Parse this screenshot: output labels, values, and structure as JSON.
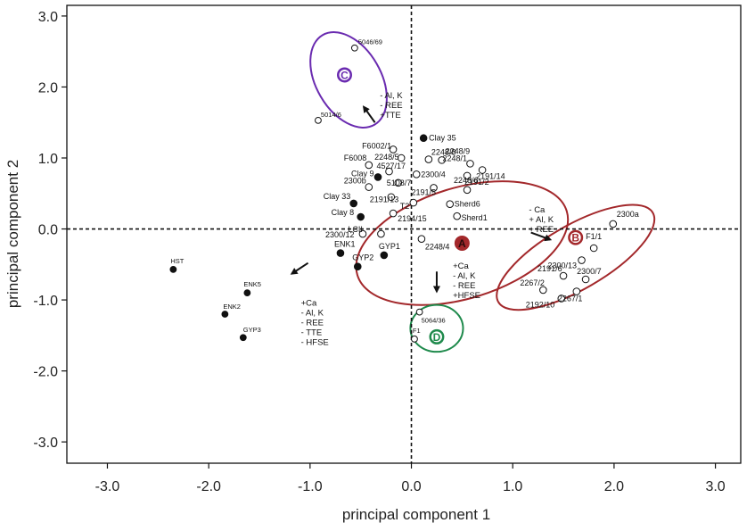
{
  "chart_data": {
    "type": "scatter",
    "title": "",
    "xlabel": "principal component 1",
    "ylabel": "principal component 2",
    "xlim": [
      -3.4,
      3.25
    ],
    "ylim": [
      -3.3,
      3.15
    ],
    "xticks": [
      "-3.0",
      "-2.0",
      "-1.0",
      "0.0",
      "1.0",
      "2.0",
      "3.0"
    ],
    "xtick_values": [
      -3,
      -2,
      -1,
      0,
      1,
      2,
      3
    ],
    "yticks": [
      "3.0",
      "2.0",
      "1.0",
      "0.0",
      "-1.0",
      "-2.0",
      "-3.0"
    ],
    "ytick_values": [
      3,
      2,
      1,
      0,
      -1,
      -2,
      -3
    ],
    "reference_lines": {
      "x": 0,
      "y": 0,
      "style": "dashed"
    },
    "grid": false,
    "points": [
      {
        "label": "5046/69",
        "x": -0.56,
        "y": 2.55,
        "filled": false,
        "small": true
      },
      {
        "label": "5014/6",
        "x": -0.92,
        "y": 1.53,
        "filled": false,
        "small": true
      },
      {
        "label": "Clay 35",
        "x": 0.12,
        "y": 1.28,
        "filled": true
      },
      {
        "label": "F6002/1",
        "x": -0.18,
        "y": 1.12,
        "filled": false
      },
      {
        "label": "2248/5",
        "x": -0.1,
        "y": 1.0,
        "filled": false
      },
      {
        "label": "2248/8",
        "x": 0.17,
        "y": 0.98,
        "filled": false
      },
      {
        "label": "2248/9",
        "x": 0.3,
        "y": 0.97,
        "filled": false
      },
      {
        "label": "F6008",
        "x": -0.42,
        "y": 0.9,
        "filled": false
      },
      {
        "label": "2248/1",
        "x": 0.58,
        "y": 0.92,
        "filled": false
      },
      {
        "label": "Clay 9",
        "x": -0.33,
        "y": 0.73,
        "filled": true
      },
      {
        "label": "4527/17",
        "x": -0.22,
        "y": 0.81,
        "filled": false
      },
      {
        "label": "2300/4",
        "x": 0.05,
        "y": 0.77,
        "filled": false
      },
      {
        "label": "2191/14",
        "x": 0.7,
        "y": 0.83,
        "filled": false
      },
      {
        "label": "2248/6",
        "x": 0.55,
        "y": 0.75,
        "filled": false
      },
      {
        "label": "2300b",
        "x": -0.42,
        "y": 0.59,
        "filled": false
      },
      {
        "label": "5108/7",
        "x": -0.13,
        "y": 0.65,
        "filled": false
      },
      {
        "label": "2191/2",
        "x": 0.55,
        "y": 0.55,
        "filled": false
      },
      {
        "label": "2191/5",
        "x": 0.22,
        "y": 0.58,
        "filled": false
      },
      {
        "label": "Clay 33",
        "x": -0.57,
        "y": 0.36,
        "filled": true
      },
      {
        "label": "2191/13",
        "x": -0.2,
        "y": 0.45,
        "filled": false
      },
      {
        "label": "Sherd6",
        "x": 0.38,
        "y": 0.35,
        "filled": false
      },
      {
        "label": "T2",
        "x": 0.02,
        "y": 0.37,
        "filled": false
      },
      {
        "label": "Clay 8",
        "x": -0.5,
        "y": 0.17,
        "filled": true
      },
      {
        "label": "2194/15",
        "x": -0.18,
        "y": 0.22,
        "filled": false
      },
      {
        "label": "Sherd1",
        "x": 0.45,
        "y": 0.18,
        "filled": false
      },
      {
        "label": "LCII",
        "x": -0.3,
        "y": -0.07,
        "filled": false
      },
      {
        "label": "2300/12",
        "x": -0.48,
        "y": -0.07,
        "filled": false
      },
      {
        "label": "2248/4",
        "x": 0.1,
        "y": -0.14,
        "filled": false
      },
      {
        "label": "ENK1",
        "x": -0.7,
        "y": -0.34,
        "filled": true
      },
      {
        "label": "GYP1",
        "x": -0.27,
        "y": -0.37,
        "filled": true
      },
      {
        "label": "GYP2",
        "x": -0.53,
        "y": -0.53,
        "filled": true
      },
      {
        "label": "2300a",
        "x": 1.99,
        "y": 0.07,
        "filled": false
      },
      {
        "label": "F1/1",
        "x": 1.8,
        "y": -0.27,
        "filled": false
      },
      {
        "label": "2300/13",
        "x": 1.68,
        "y": -0.44,
        "filled": false
      },
      {
        "label": "2191/6",
        "x": 1.5,
        "y": -0.66,
        "filled": false
      },
      {
        "label": "2300/7",
        "x": 1.72,
        "y": -0.71,
        "filled": false
      },
      {
        "label": "2267/2",
        "x": 1.3,
        "y": -0.86,
        "filled": false
      },
      {
        "label": "2267/1",
        "x": 1.63,
        "y": -0.88,
        "filled": false
      },
      {
        "label": "2192/10",
        "x": 1.48,
        "y": -0.98,
        "filled": false
      },
      {
        "label": "HST",
        "x": -2.35,
        "y": -0.57,
        "filled": true,
        "small": true
      },
      {
        "label": "ENK5",
        "x": -1.62,
        "y": -0.9,
        "filled": true,
        "small": true
      },
      {
        "label": "ENK2",
        "x": -1.84,
        "y": -1.2,
        "filled": true,
        "small": true
      },
      {
        "label": "GYP3",
        "x": -1.66,
        "y": -1.53,
        "filled": true,
        "small": true
      },
      {
        "label": "5064/36",
        "x": 0.08,
        "y": -1.17,
        "filled": false,
        "small": true
      },
      {
        "label": "F1",
        "x": 0.03,
        "y": -1.55,
        "filled": false,
        "small": true
      }
    ],
    "groups": [
      {
        "name": "A",
        "color": "#a3282b",
        "filled_marker": true,
        "center": [
          0.5,
          -0.2
        ],
        "rx": 1.08,
        "ry": 0.78,
        "angle": 17
      },
      {
        "name": "B",
        "color": "#a3282b",
        "filled_marker": false,
        "center": [
          1.62,
          -0.4
        ],
        "rx": 0.88,
        "ry": 0.45,
        "angle": 30
      },
      {
        "name": "C",
        "color": "#6a2bb0",
        "filled_marker": false,
        "center": [
          -0.62,
          2.1
        ],
        "rx": 0.32,
        "ry": 0.73,
        "angle": 30
      },
      {
        "name": "D",
        "color": "#1f8a4c",
        "filled_marker": false,
        "center": [
          0.25,
          -1.4
        ],
        "rx": 0.26,
        "ry": 0.33,
        "angle": 0
      }
    ],
    "annotations": [
      {
        "lines": [
          "- Al, K",
          "- REE",
          "+TTE"
        ],
        "arrow_to": "C"
      },
      {
        "lines": [
          "- Ca",
          "+ Al, K",
          "+ REE"
        ],
        "arrow_to": "B"
      },
      {
        "lines": [
          "+Ca",
          "- Al, K",
          "- REE",
          "+HFSE"
        ],
        "arrow_to": "D"
      },
      {
        "lines": [
          "+Ca",
          "- Al, K",
          "- REE",
          "- TTE",
          "- HFSE"
        ],
        "arrow_to": "left"
      }
    ]
  }
}
